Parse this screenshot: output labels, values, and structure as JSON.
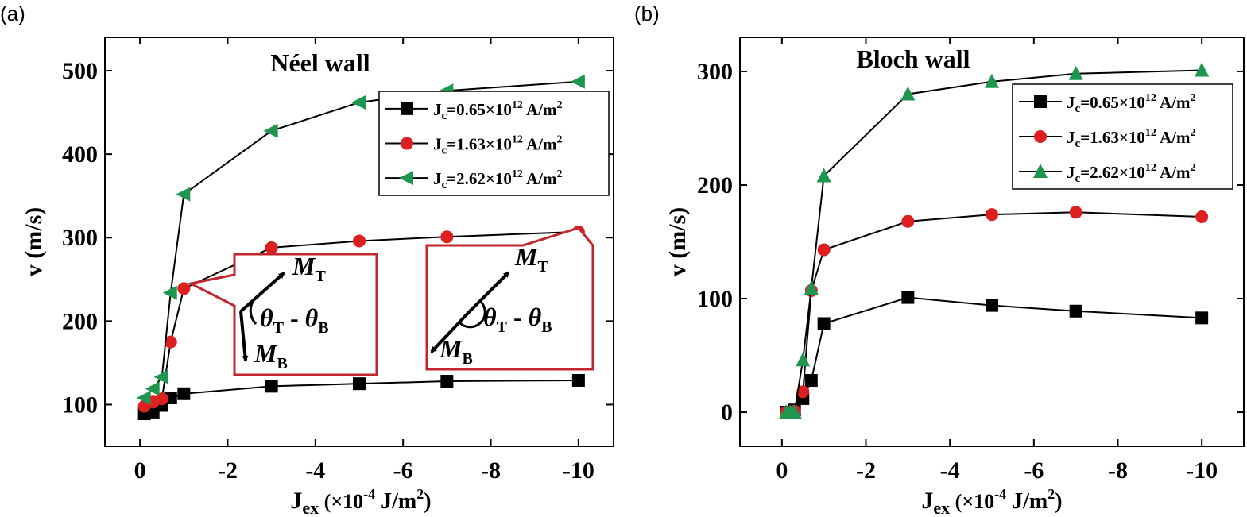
{
  "colors": {
    "black": "#000000",
    "red": "#dd1f1f",
    "green": "#1e9650",
    "inset_border": "#c0262c"
  },
  "figure": {
    "panel_a_label": "(a)",
    "panel_b_label": "(b)"
  },
  "inset": {
    "mt_main": "M",
    "mt_sub": "T",
    "mb_main": "M",
    "mb_sub": "B",
    "angle_t1": "θ",
    "angle_s1": "T",
    "angle_mid": " - ",
    "angle_t2": "θ",
    "angle_s2": "B"
  },
  "chart_data": [
    {
      "type": "line",
      "panel": "(a)",
      "title": "Néel wall",
      "xlabel": "J_ex (×10^-4 J/m^2)",
      "xlabel_main": "J",
      "xlabel_sub": "ex",
      "xlabel_rest1": " (×10",
      "xlabel_exp": "-4",
      "xlabel_rest2": " J/m",
      "xlabel_exp2": "2",
      "xlabel_rest3": ")",
      "ylabel": "v (m/s)",
      "xlim": [
        0.8,
        -10.8
      ],
      "ylim": [
        50,
        540
      ],
      "xticks": [
        0,
        -2,
        -4,
        -6,
        -8,
        -10
      ],
      "xtick_labels": [
        "0",
        "-2",
        "-4",
        "-6",
        "-8",
        "-10"
      ],
      "yticks": [
        100,
        200,
        300,
        400,
        500
      ],
      "ytick_labels": [
        "100",
        "200",
        "300",
        "400",
        "500"
      ],
      "legend_position": "top-right",
      "series": [
        {
          "name": "Jc=0.65×10^12 A/m^2",
          "lp": "J",
          "ls": "c",
          "lm": "=0.65×10",
          "le": "12",
          "lu": " A/m",
          "le2": "2",
          "marker": "square",
          "color": "#000000",
          "x": [
            -0.1,
            -0.3,
            -0.5,
            -0.7,
            -1,
            -3,
            -5,
            -7,
            -10
          ],
          "y": [
            89,
            91,
            99,
            108,
            113,
            122,
            125,
            128,
            129
          ]
        },
        {
          "name": "Jc=1.63×10^12 A/m^2",
          "lp": "J",
          "ls": "c",
          "lm": "=1.63×10",
          "le": "12",
          "lu": " A/m",
          "le2": "2",
          "marker": "circle",
          "color": "#dd1f1f",
          "x": [
            -0.1,
            -0.3,
            -0.5,
            -0.7,
            -1,
            -3,
            -5,
            -7,
            -10
          ],
          "y": [
            98,
            103,
            107,
            175,
            239,
            288,
            296,
            301,
            307
          ]
        },
        {
          "name": "Jc=2.62×10^12 A/m^2",
          "lp": "J",
          "ls": "c",
          "lm": "=2.62×10",
          "le": "12",
          "lu": " A/m",
          "le2": "2",
          "marker": "triangle-left",
          "color": "#1e9650",
          "x": [
            -0.1,
            -0.3,
            -0.5,
            -0.7,
            -1,
            -3,
            -5,
            -7,
            -10
          ],
          "y": [
            108,
            119,
            133,
            234,
            352,
            428,
            462,
            476,
            487
          ]
        }
      ]
    },
    {
      "type": "line",
      "panel": "(b)",
      "title": "Bloch wall",
      "xlabel": "J_ex (×10^-4 J/m^2)",
      "xlabel_main": "J",
      "xlabel_sub": "ex",
      "xlabel_rest1": " (×10",
      "xlabel_exp": "-4",
      "xlabel_rest2": " J/m",
      "xlabel_exp2": "2",
      "xlabel_rest3": ")",
      "ylabel": "v (m/s)",
      "xlim": [
        1,
        -11
      ],
      "ylim": [
        -30,
        330
      ],
      "xticks": [
        0,
        -2,
        -4,
        -6,
        -8,
        -10
      ],
      "xtick_labels": [
        "0",
        "-2",
        "-4",
        "-6",
        "-8",
        "-10"
      ],
      "yticks": [
        0,
        100,
        200,
        300
      ],
      "ytick_labels": [
        "0",
        "100",
        "200",
        "300"
      ],
      "legend_position": "top-right",
      "series": [
        {
          "name": "Jc=0.65×10^12 A/m^2",
          "lp": "J",
          "ls": "c",
          "lm": "=0.65×10",
          "le": "12",
          "lu": " A/m",
          "le2": "2",
          "marker": "square",
          "color": "#000000",
          "x": [
            -0.1,
            -0.2,
            -0.3,
            -0.5,
            -0.7,
            -1,
            -3,
            -5,
            -7,
            -10
          ],
          "y": [
            0,
            0,
            2,
            12,
            28,
            78,
            101,
            94,
            89,
            83
          ]
        },
        {
          "name": "Jc=1.63×10^12 A/m^2",
          "lp": "J",
          "ls": "c",
          "lm": "=1.63×10",
          "le": "12",
          "lu": " A/m",
          "le2": "2",
          "marker": "circle",
          "color": "#dd1f1f",
          "x": [
            -0.1,
            -0.2,
            -0.3,
            -0.5,
            -0.7,
            -1,
            -3,
            -5,
            -7,
            -10
          ],
          "y": [
            0,
            0,
            1,
            18,
            107,
            143,
            168,
            174,
            176,
            172
          ]
        },
        {
          "name": "Jc=2.62×10^12 A/m^2",
          "lp": "J",
          "ls": "c",
          "lm": "=2.62×10",
          "le": "12",
          "lu": " A/m",
          "le2": "2",
          "marker": "triangle-up",
          "color": "#1e9650",
          "x": [
            -0.1,
            -0.2,
            -0.3,
            -0.5,
            -0.7,
            -1,
            -3,
            -5,
            -7,
            -10
          ],
          "y": [
            0,
            0,
            0,
            46,
            109,
            208,
            280,
            291,
            298,
            301
          ]
        }
      ]
    }
  ]
}
